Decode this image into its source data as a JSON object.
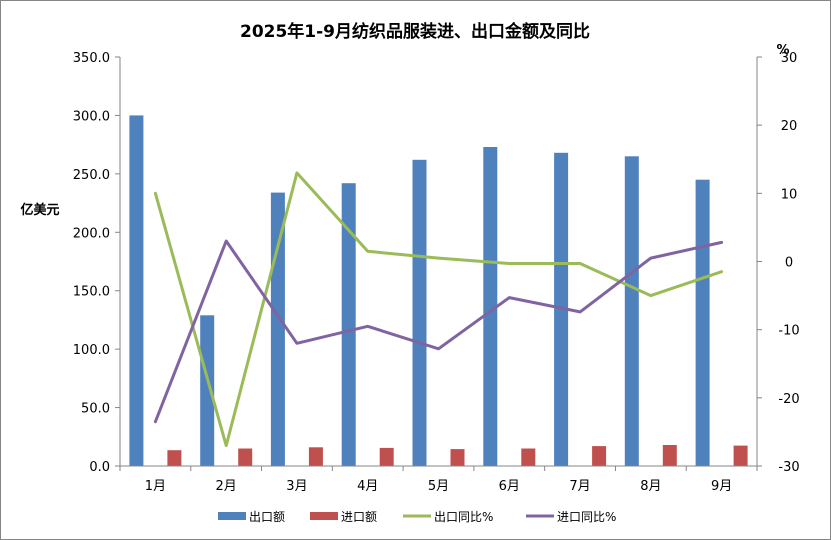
{
  "chart_data": {
    "type": "bar+line",
    "title": "2025年1-9月纺织品服装进、出口金额及同比",
    "categories": [
      "1月",
      "2月",
      "3月",
      "4月",
      "5月",
      "6月",
      "7月",
      "8月",
      "9月"
    ],
    "y_left": {
      "label": "亿美元",
      "ylim": [
        0,
        350
      ],
      "ticks": [
        "0.0",
        "50.0",
        "100.0",
        "150.0",
        "200.0",
        "250.0",
        "300.0",
        "350.0"
      ]
    },
    "y_right": {
      "label": "%",
      "ylim": [
        -30,
        30
      ],
      "ticks": [
        "-30",
        "-20",
        "-10",
        "0",
        "10",
        "20",
        "30"
      ]
    },
    "grid": false,
    "legend_position": "bottom",
    "series": [
      {
        "name": "出口额",
        "type": "bar",
        "axis": "left",
        "color": "#4f81bd",
        "values": [
          300,
          129,
          234,
          242,
          262,
          273,
          268,
          265,
          245
        ]
      },
      {
        "name": "进口额",
        "type": "bar",
        "axis": "left",
        "color": "#c0504d",
        "values": [
          13.5,
          15,
          16,
          15.5,
          14.5,
          15,
          17,
          18,
          17.5
        ]
      },
      {
        "name": "出口同比%",
        "type": "line",
        "axis": "right",
        "color": "#9bbb59",
        "values": [
          10,
          -27,
          13,
          1.5,
          0.5,
          -0.3,
          -0.3,
          -5,
          -1.5
        ]
      },
      {
        "name": "进口同比%",
        "type": "line",
        "axis": "right",
        "color": "#8064a2",
        "values": [
          -23.5,
          3,
          -12,
          -9.5,
          -12.8,
          -5.3,
          -7.4,
          0.5,
          2.8
        ]
      }
    ]
  }
}
